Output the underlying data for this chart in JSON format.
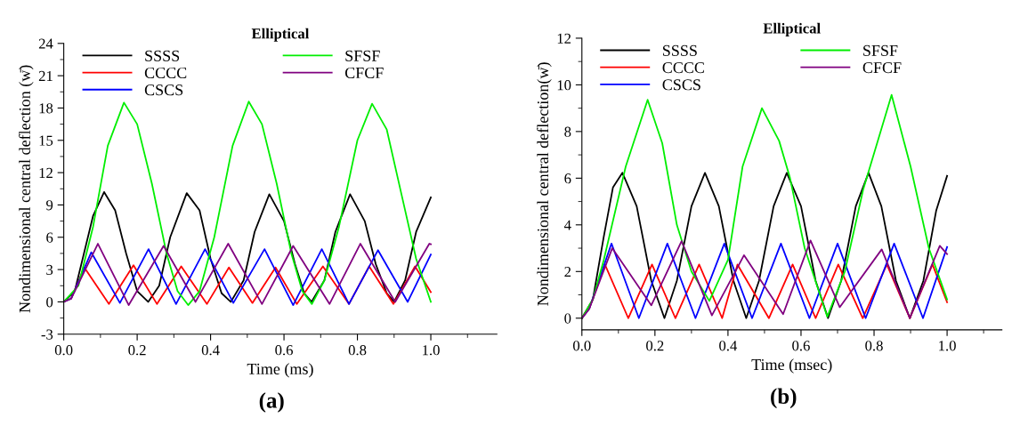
{
  "chart_data": [
    {
      "type": "line",
      "title": "Elliptical",
      "xlabel": "Time (ms)",
      "ylabel": "Nondimensional central deflection (w̄)",
      "xlim": [
        0,
        1.18
      ],
      "xticks": [
        {
          "value": 0,
          "label": "0.0"
        },
        {
          "value": 0.1,
          "label": null
        },
        0.2,
        {
          "value": 0.3,
          "label": null
        },
        0.4,
        {
          "value": 0.5,
          "label": null
        },
        0.6,
        {
          "value": 0.7,
          "label": null
        },
        0.8,
        {
          "value": 0.9,
          "label": null
        },
        {
          "value": 1,
          "label": "1.0"
        },
        {
          "value": 1.1,
          "label": null
        }
      ],
      "ylim": [
        -3,
        24
      ],
      "yticks": [
        -3,
        {
          "value": -1.5,
          "label": null
        },
        0,
        {
          "value": 1.5,
          "label": null
        },
        3,
        {
          "value": 4.5,
          "label": null
        },
        6,
        {
          "value": 7.5,
          "label": null
        },
        9,
        {
          "value": 10.5,
          "label": null
        },
        12,
        {
          "value": 13.5,
          "label": null
        },
        15,
        {
          "value": 16.5,
          "label": null
        },
        18,
        {
          "value": 19.5,
          "label": null
        },
        21,
        {
          "value": 22.5,
          "label": null
        },
        24
      ],
      "legend": "top left",
      "grid": false,
      "annotations": [
        "(a)"
      ],
      "series": [
        {
          "name": "SSSS",
          "color": "#000000",
          "x": [
            0,
            0.03,
            0.055,
            0.08,
            0.11,
            0.14,
            0.17,
            0.2,
            0.23,
            0.26,
            0.29,
            0.335,
            0.37,
            0.4,
            0.43,
            0.455,
            0.49,
            0.52,
            0.56,
            0.6,
            0.63,
            0.655,
            0.675,
            0.71,
            0.74,
            0.78,
            0.82,
            0.85,
            0.88,
            0.9,
            0.93,
            0.96,
            1.0
          ],
          "values": [
            0,
            1.0,
            4.5,
            8,
            10.2,
            8.5,
            4.5,
            1,
            0,
            1.5,
            6,
            10.1,
            8.5,
            4,
            0.8,
            0,
            2,
            6.5,
            10.0,
            7.5,
            3.5,
            0.8,
            0,
            2,
            6.5,
            10.0,
            7.5,
            3.5,
            0.8,
            0,
            2,
            6.5,
            9.7
          ]
        },
        {
          "name": "CCCC",
          "color": "#ff0000",
          "x": [
            0,
            0.02,
            0.056,
            0.123,
            0.19,
            0.254,
            0.32,
            0.39,
            0.45,
            0.514,
            0.577,
            0.635,
            0.706,
            0.777,
            0.832,
            0.898,
            0.957,
            1.0
          ],
          "values": [
            0,
            0.3,
            3.2,
            -0.2,
            3.4,
            -0.2,
            3.3,
            -0.2,
            3.2,
            -0.1,
            3.2,
            -0.2,
            3.3,
            -0.2,
            3.3,
            -0.2,
            3.3,
            0.9
          ]
        },
        {
          "name": "CSCS",
          "color": "#0000ff",
          "x": [
            0,
            0.02,
            0.075,
            0.153,
            0.231,
            0.306,
            0.385,
            0.462,
            0.547,
            0.625,
            0.703,
            0.777,
            0.856,
            0.937,
            1.0
          ],
          "values": [
            0,
            0.3,
            4.6,
            -0.1,
            4.9,
            -0.2,
            4.9,
            -0.1,
            4.9,
            -0.3,
            4.9,
            -0.2,
            4.8,
            0,
            4.4
          ]
        },
        {
          "name": "SFSF",
          "color": "#00ee00",
          "x": [
            0,
            0.04,
            0.08,
            0.12,
            0.164,
            0.2,
            0.24,
            0.28,
            0.31,
            0.339,
            0.37,
            0.41,
            0.46,
            0.504,
            0.54,
            0.58,
            0.62,
            0.65,
            0.676,
            0.71,
            0.75,
            0.8,
            0.84,
            0.88,
            0.92,
            0.96,
            1.0
          ],
          "values": [
            0,
            1.5,
            7,
            14.5,
            18.5,
            16.5,
            11,
            4.5,
            1,
            -0.3,
            1,
            6,
            14.5,
            18.6,
            16.5,
            11,
            4.5,
            1,
            -0.2,
            2,
            7,
            15,
            18.4,
            16,
            10,
            4,
            0
          ]
        },
        {
          "name": "CFCF",
          "color": "#800080",
          "x": [
            0,
            0.02,
            0.093,
            0.177,
            0.272,
            0.359,
            0.448,
            0.54,
            0.625,
            0.724,
            0.808,
            0.903,
            0.996,
            1.0
          ],
          "values": [
            0,
            0.3,
            5.4,
            -0.3,
            5.2,
            0,
            5.4,
            -0.2,
            5.2,
            -0.2,
            5.4,
            0,
            5.4,
            5.35
          ]
        }
      ]
    },
    {
      "type": "line",
      "title": "Elliptical",
      "xlabel": "Time (msec)",
      "ylabel": "Nondimensional central deflection(w̄)",
      "xlim": [
        0,
        1.15
      ],
      "xticks": [
        {
          "value": 0,
          "label": "0.0"
        },
        {
          "value": 0.1,
          "label": null
        },
        0.2,
        {
          "value": 0.3,
          "label": null
        },
        0.4,
        {
          "value": 0.5,
          "label": null
        },
        0.6,
        {
          "value": 0.7,
          "label": null
        },
        0.8,
        {
          "value": 0.9,
          "label": null
        },
        {
          "value": 1,
          "label": "1.0"
        },
        {
          "value": 1.1,
          "label": null
        }
      ],
      "ylim": [
        -0.5,
        12
      ],
      "yticks": [
        0,
        {
          "value": 1,
          "label": null
        },
        2,
        {
          "value": 3,
          "label": null
        },
        4,
        {
          "value": 5,
          "label": null
        },
        6,
        {
          "value": 7,
          "label": null
        },
        8,
        {
          "value": 9,
          "label": null
        },
        10,
        {
          "value": 11,
          "label": null
        },
        12
      ],
      "legend": "top left",
      "grid": false,
      "annotations": [
        "(b)"
      ],
      "series": [
        {
          "name": "SSSS",
          "color": "#000000",
          "x": [
            0,
            0.03,
            0.06,
            0.085,
            0.111,
            0.15,
            0.19,
            0.226,
            0.26,
            0.3,
            0.337,
            0.375,
            0.415,
            0.45,
            0.485,
            0.525,
            0.561,
            0.6,
            0.64,
            0.674,
            0.71,
            0.75,
            0.785,
            0.82,
            0.86,
            0.898,
            0.935,
            0.97,
            1.0
          ],
          "values": [
            0,
            0.8,
            3.5,
            5.6,
            6.23,
            4.8,
            1.6,
            0,
            1.6,
            4.8,
            6.23,
            4.8,
            1.6,
            0,
            1.6,
            4.8,
            6.23,
            4.8,
            1.6,
            0,
            1.6,
            4.8,
            6.23,
            4.8,
            1.6,
            0,
            1.6,
            4.6,
            6.1
          ]
        },
        {
          "name": "CCCC",
          "color": "#ff0000",
          "x": [
            0,
            0.02,
            0.063,
            0.127,
            0.192,
            0.256,
            0.321,
            0.384,
            0.426,
            0.512,
            0.577,
            0.64,
            0.702,
            0.769,
            0.835,
            0.898,
            0.96,
            1.0
          ],
          "values": [
            0,
            0.4,
            2.3,
            0,
            2.3,
            0,
            2.3,
            0,
            2.3,
            0,
            2.3,
            0,
            2.3,
            0,
            2.3,
            0,
            2.3,
            0.68
          ]
        },
        {
          "name": "CSCS",
          "color": "#0000ff",
          "x": [
            0,
            0.02,
            0.081,
            0.156,
            0.234,
            0.311,
            0.39,
            0.466,
            0.545,
            0.623,
            0.7,
            0.777,
            0.855,
            0.934,
            1.0
          ],
          "values": [
            0,
            0.4,
            3.2,
            0,
            3.2,
            0,
            3.2,
            0,
            3.2,
            0,
            3.2,
            0,
            3.2,
            0,
            3.05
          ]
        },
        {
          "name": "SFSF",
          "color": "#00ee00",
          "x": [
            0,
            0.03,
            0.06,
            0.12,
            0.18,
            0.22,
            0.26,
            0.3,
            0.349,
            0.4,
            0.44,
            0.493,
            0.54,
            0.57,
            0.61,
            0.672,
            0.72,
            0.77,
            0.848,
            0.9,
            0.95,
            1.0
          ],
          "values": [
            0,
            0.8,
            2.5,
            6.5,
            9.36,
            7.5,
            4,
            2,
            0.74,
            2.5,
            6.5,
            9.0,
            7.6,
            6,
            3,
            0.06,
            2,
            5.5,
            9.57,
            6.5,
            3,
            0.8
          ]
        },
        {
          "name": "CFCF",
          "color": "#800080",
          "x": [
            0,
            0.02,
            0.083,
            0.19,
            0.273,
            0.356,
            0.444,
            0.551,
            0.626,
            0.706,
            0.821,
            0.898,
            0.98,
            1.0
          ],
          "values": [
            0,
            0.4,
            3.0,
            0.55,
            3.3,
            0.12,
            2.7,
            0.17,
            3.33,
            0.47,
            2.95,
            0,
            3.1,
            2.75
          ]
        }
      ]
    }
  ]
}
